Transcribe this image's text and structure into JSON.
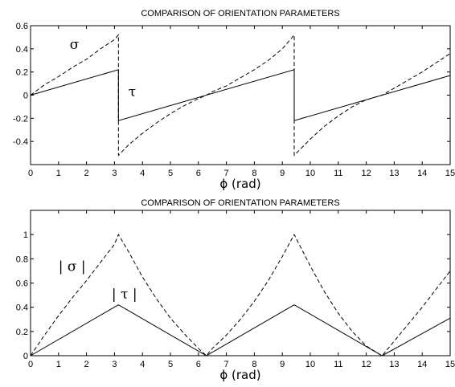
{
  "chart_data": [
    {
      "type": "line",
      "title": "COMPARISON OF ORIENTATION PARAMETERS",
      "xlabel": "ϕ (rad)",
      "ylabel": "",
      "xlim": [
        0,
        15
      ],
      "ylim": [
        -0.6,
        0.6
      ],
      "xticks": [
        "0",
        "1",
        "2",
        "3",
        "4",
        "5",
        "6",
        "7",
        "8",
        "9",
        "10",
        "11",
        "12",
        "13",
        "14",
        "15"
      ],
      "yticks": [
        "-0.4",
        "-0.2",
        "0",
        "0.2",
        "0.4",
        "0.6"
      ],
      "ytick_values": [
        -0.4,
        -0.2,
        0,
        0.2,
        0.4,
        0.6
      ],
      "grid": false,
      "annotations": [
        {
          "text": "σ",
          "x": 1.4,
          "y": 0.4
        },
        {
          "text": "τ",
          "x": 3.5,
          "y": -0.01
        }
      ],
      "series": [
        {
          "label": "σ",
          "style": "dashed",
          "x": [
            0,
            0.5,
            1.0,
            1.5,
            2.0,
            2.5,
            3.0,
            3.1416,
            3.1416,
            3.5,
            4.0,
            4.5,
            5.0,
            5.5,
            6.0,
            6.2832,
            6.5,
            7.0,
            7.5,
            8.0,
            8.5,
            9.0,
            9.4248,
            9.4248,
            10.0,
            10.5,
            11.0,
            11.5,
            12.0,
            12.5664,
            13.0,
            13.5,
            14.0,
            14.5,
            15.0
          ],
          "values": [
            0,
            0.09,
            0.16,
            0.24,
            0.31,
            0.4,
            0.48,
            0.52,
            -0.52,
            -0.43,
            -0.33,
            -0.24,
            -0.16,
            -0.09,
            -0.03,
            0,
            0.03,
            0.08,
            0.15,
            0.22,
            0.3,
            0.4,
            0.52,
            -0.52,
            -0.38,
            -0.27,
            -0.18,
            -0.1,
            -0.04,
            0,
            0.06,
            0.13,
            0.2,
            0.28,
            0.36
          ]
        },
        {
          "label": "τ",
          "style": "solid",
          "x": [
            0,
            3.1416,
            3.1416,
            9.4248,
            9.4248,
            15.0
          ],
          "values": [
            0,
            0.22,
            -0.22,
            0.22,
            -0.22,
            0.17
          ]
        }
      ]
    },
    {
      "type": "line",
      "title": "COMPARISON OF ORIENTATION PARAMETERS",
      "xlabel": "ϕ (rad)",
      "ylabel": "",
      "xlim": [
        0,
        15
      ],
      "ylim": [
        0,
        1.2
      ],
      "xticks": [
        "0",
        "1",
        "2",
        "3",
        "4",
        "5",
        "6",
        "7",
        "8",
        "9",
        "10",
        "11",
        "12",
        "13",
        "14",
        "15"
      ],
      "yticks": [
        "0",
        "0.2",
        "0.4",
        "0.6",
        "0.8",
        "1"
      ],
      "ytick_values": [
        0,
        0.2,
        0.4,
        0.6,
        0.8,
        1.0
      ],
      "grid": false,
      "annotations": [
        {
          "text": "| σ |",
          "x": 1.0,
          "y": 0.7
        },
        {
          "text": "| τ |",
          "x": 2.9,
          "y": 0.47
        }
      ],
      "series": [
        {
          "label": "|σ|",
          "style": "dashed",
          "x": [
            0,
            0.5,
            1.0,
            1.5,
            2.0,
            2.5,
            3.0,
            3.1416,
            3.5,
            4.0,
            4.5,
            5.0,
            5.5,
            6.0,
            6.2832,
            6.5,
            7.0,
            7.5,
            8.0,
            8.5,
            9.0,
            9.4248,
            10.0,
            10.5,
            11.0,
            11.5,
            12.0,
            12.5664,
            13.0,
            13.5,
            14.0,
            14.5,
            15.0
          ],
          "values": [
            0,
            0.17,
            0.33,
            0.48,
            0.62,
            0.77,
            0.92,
            1.0,
            0.86,
            0.65,
            0.47,
            0.31,
            0.18,
            0.06,
            0,
            0.06,
            0.17,
            0.3,
            0.45,
            0.62,
            0.82,
            1.0,
            0.74,
            0.53,
            0.35,
            0.2,
            0.08,
            0,
            0.12,
            0.26,
            0.4,
            0.55,
            0.7
          ]
        },
        {
          "label": "|τ|",
          "style": "solid",
          "x": [
            0,
            3.1416,
            6.2832,
            9.4248,
            12.5664,
            15.0
          ],
          "values": [
            0,
            0.42,
            0,
            0.42,
            0,
            0.31
          ]
        }
      ]
    }
  ]
}
